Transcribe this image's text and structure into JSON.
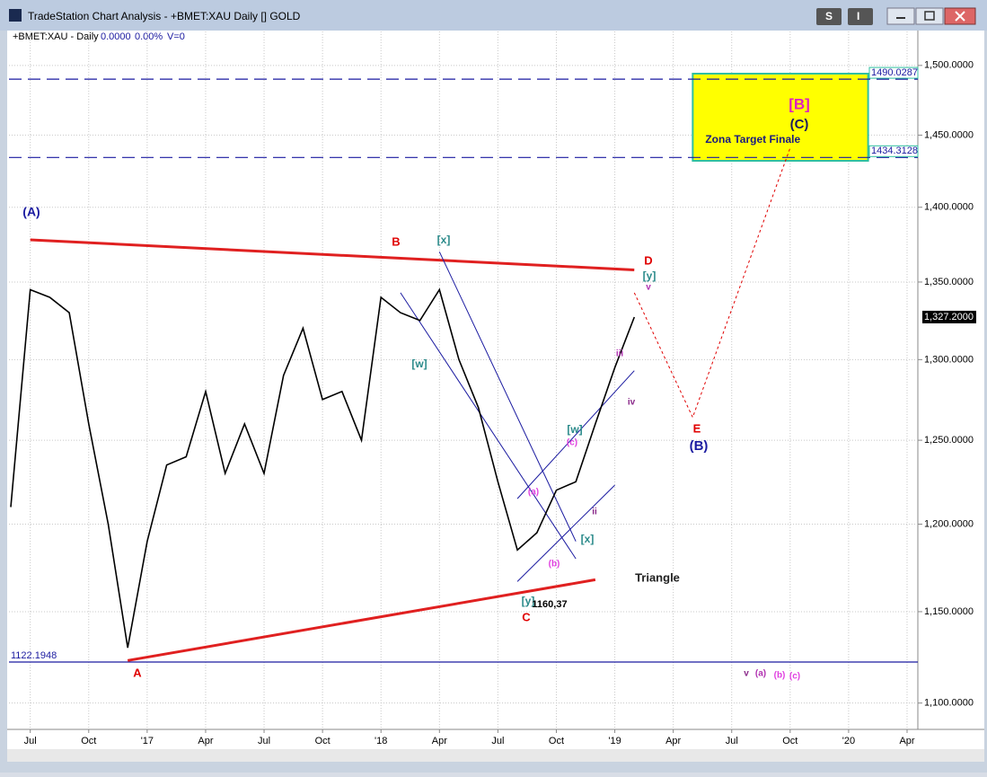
{
  "window": {
    "title": "TradeStation Chart Analysis - +BMET:XAU Daily [] GOLD",
    "buttons": [
      "S",
      "I"
    ]
  },
  "header": {
    "symbol": "+BMET:XAU - Daily",
    "change": "0.0000",
    "change_pct": "0.00%",
    "volume": "V=0"
  },
  "chart_data": {
    "type": "line",
    "log_scale": true,
    "grid": true,
    "xlim": [
      "2016-06",
      "2020-04"
    ],
    "xticks": [
      {
        "value": "2016-07",
        "label": "Jul"
      },
      {
        "value": "2016-10",
        "label": "Oct"
      },
      {
        "value": "2017-01",
        "label": "'17"
      },
      {
        "value": "2017-04",
        "label": "Apr"
      },
      {
        "value": "2017-07",
        "label": "Jul"
      },
      {
        "value": "2017-10",
        "label": "Oct"
      },
      {
        "value": "2018-01",
        "label": "'18"
      },
      {
        "value": "2018-04",
        "label": "Apr"
      },
      {
        "value": "2018-07",
        "label": "Jul"
      },
      {
        "value": "2018-10",
        "label": "Oct"
      },
      {
        "value": "2019-01",
        "label": "'19"
      },
      {
        "value": "2019-04",
        "label": "Apr"
      },
      {
        "value": "2019-07",
        "label": "Jul"
      },
      {
        "value": "2019-10",
        "label": "Oct"
      },
      {
        "value": "2020-01",
        "label": "'20"
      },
      {
        "value": "2020-04",
        "label": "Apr"
      }
    ],
    "ylim": [
      1086,
      1525
    ],
    "yticks": [
      {
        "value": 1100,
        "label": "1,100.0000"
      },
      {
        "value": 1150,
        "label": "1,150.0000"
      },
      {
        "value": 1200,
        "label": "1,200.0000"
      },
      {
        "value": 1250,
        "label": "1,250.0000"
      },
      {
        "value": 1300,
        "label": "1,300.0000"
      },
      {
        "value": 1350,
        "label": "1,350.0000"
      },
      {
        "value": 1400,
        "label": "1,400.0000"
      },
      {
        "value": 1450,
        "label": "1,450.0000"
      },
      {
        "value": 1500,
        "label": "1,500.0000"
      }
    ],
    "series": [
      {
        "color": "#000000",
        "x": [
          "2016-06",
          "2016-07",
          "2016-08",
          "2016-09",
          "2016-10",
          "2016-11",
          "2016-12",
          "2017-01",
          "2017-02",
          "2017-03",
          "2017-04",
          "2017-05",
          "2017-06",
          "2017-07",
          "2017-08",
          "2017-09",
          "2017-10",
          "2017-11",
          "2017-12",
          "2018-01",
          "2018-02",
          "2018-03",
          "2018-04",
          "2018-05",
          "2018-06",
          "2018-07",
          "2018-08",
          "2018-09",
          "2018-10",
          "2018-11",
          "2018-12",
          "2019-01",
          "2019-02"
        ],
        "values": [
          1210,
          1345,
          1340,
          1330,
          1260,
          1200,
          1130,
          1190,
          1235,
          1240,
          1280,
          1230,
          1260,
          1230,
          1290,
          1320,
          1275,
          1280,
          1250,
          1340,
          1330,
          1325,
          1345,
          1300,
          1270,
          1225,
          1185,
          1195,
          1220,
          1225,
          1260,
          1295,
          1327.2
        ]
      },
      {
        "color": "#e00000",
        "dashed": true,
        "x": [
          "2019-02",
          "2019-05",
          "2019-10"
        ],
        "values": [
          1343,
          1264,
          1441
        ]
      }
    ],
    "last_price": {
      "value": 1327.2,
      "label": "1,327.2000"
    },
    "trendlines": [
      {
        "color": "#e02020",
        "x": [
          "2016-07",
          "2019-02"
        ],
        "values": [
          1378,
          1358
        ]
      },
      {
        "color": "#e02020",
        "x": [
          "2016-12",
          "2018-12"
        ],
        "values": [
          1123,
          1168
        ]
      },
      {
        "color": "#1a1aa0",
        "x": [
          "2018-02",
          "2018-11"
        ],
        "values": [
          1343,
          1180
        ]
      },
      {
        "color": "#1a1aa0",
        "x": [
          "2018-04",
          "2018-11"
        ],
        "values": [
          1370,
          1190
        ]
      },
      {
        "color": "#1a1aa0",
        "x": [
          "2018-08",
          "2019-01"
        ],
        "values": [
          1167,
          1223
        ]
      },
      {
        "color": "#1a1aa0",
        "x": [
          "2018-08",
          "2019-02"
        ],
        "values": [
          1215,
          1293
        ]
      }
    ],
    "levels": [
      {
        "value": 1490.0287,
        "label": "1490.0287",
        "dashed": true
      },
      {
        "value": 1434.3128,
        "label": "1434.3128",
        "dashed": true
      },
      {
        "value": 1122.1948,
        "label": "1122.1948",
        "dashed": false
      }
    ],
    "target_zone": {
      "label": "Zona Target Finale",
      "x": [
        "2019-05",
        "2020-02"
      ],
      "ylim": [
        1432,
        1494
      ]
    },
    "annotations": [
      {
        "text": "(A)",
        "color": "#1a1aa0"
      },
      {
        "text": "A",
        "color": "#e00000"
      },
      {
        "text": "B",
        "color": "#e00000"
      },
      {
        "text": "[x]",
        "color": "#2a8a8a"
      },
      {
        "text": "[w]",
        "color": "#2a8a8a"
      },
      {
        "text": "C",
        "color": "#e00000"
      },
      {
        "text": "[y]",
        "color": "#2a8a8a"
      },
      {
        "text": "1160,37",
        "color": "#000000"
      },
      {
        "text": "(a)",
        "color": "#e040e0"
      },
      {
        "text": "(b)",
        "color": "#e040e0"
      },
      {
        "text": "(c)",
        "color": "#e040e0"
      },
      {
        "text": "[w]",
        "color": "#2a8a8a"
      },
      {
        "text": "[x]",
        "color": "#2a8a8a"
      },
      {
        "text": "ii",
        "color": "#8a2a8a"
      },
      {
        "text": "iii",
        "color": "#b030b0"
      },
      {
        "text": "iv",
        "color": "#8a2a8a"
      },
      {
        "text": "D",
        "color": "#e00000"
      },
      {
        "text": "[y]",
        "color": "#2a8a8a"
      },
      {
        "text": "v",
        "color": "#b030b0"
      },
      {
        "text": "E",
        "color": "#e00000"
      },
      {
        "text": "(B)",
        "color": "#1a1aa0"
      },
      {
        "text": "Triangle",
        "color": "#222222"
      },
      {
        "text": "[B]",
        "color": "#e020c0"
      },
      {
        "text": "(C)",
        "color": "#1a1a60"
      },
      {
        "text": "v",
        "color": "#8a2a8a"
      },
      {
        "text": "(a)",
        "color": "#b030b0"
      },
      {
        "text": "(b)",
        "color": "#e040e0"
      },
      {
        "text": "(c)",
        "color": "#e040e0"
      }
    ]
  }
}
